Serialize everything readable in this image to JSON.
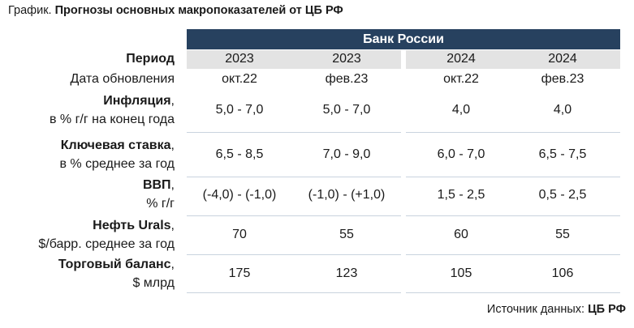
{
  "title": {
    "prefix": "График.",
    "main": "Прогнозы основных макропоказателей от ЦБ РФ"
  },
  "bank": "Банк России",
  "period_label": "Период",
  "update_label": "Дата обновления",
  "columns": [
    {
      "year": "2023",
      "date": "окт.22"
    },
    {
      "year": "2023",
      "date": "фев.23"
    },
    {
      "year": "2024",
      "date": "окт.22"
    },
    {
      "year": "2024",
      "date": "фев.23"
    }
  ],
  "rows": [
    {
      "name": "Инфляция",
      "sub": "в % г/г на конец года",
      "values": [
        "5,0 - 7,0",
        "5,0 - 7,0",
        "4,0",
        "4,0"
      ]
    },
    {
      "name": "Ключевая ставка",
      "sub": "в % среднее за год",
      "values": [
        "6,5 - 8,5",
        "7,0 - 9,0",
        "6,0 - 7,0",
        "6,5 - 7,5"
      ]
    },
    {
      "name": "ВВП",
      "sub": "% г/г",
      "values": [
        "(-4,0) - (-1,0)",
        "(-1,0) - (+1,0)",
        "1,5 - 2,5",
        "0,5 - 2,5"
      ]
    },
    {
      "name": "Нефть Urals",
      "sub": "$/барр. среднее за год",
      "values": [
        "70",
        "55",
        "60",
        "55"
      ]
    },
    {
      "name": "Торговый баланс",
      "sub": "$ млрд",
      "values": [
        "175",
        "123",
        "105",
        "106"
      ]
    }
  ],
  "source": {
    "prefix": "Источник данных:",
    "name": "ЦБ РФ"
  }
}
